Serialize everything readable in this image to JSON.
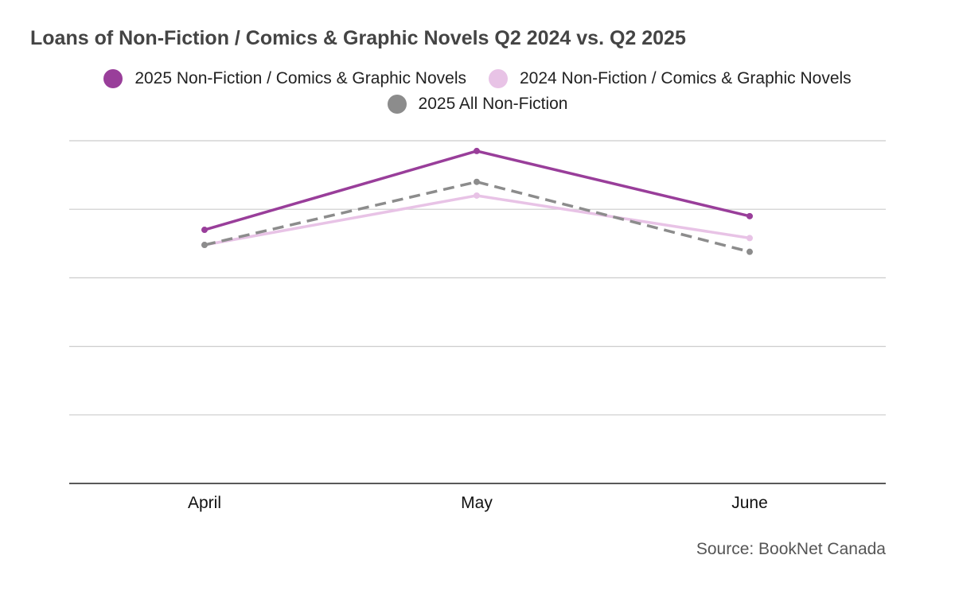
{
  "chart_data": {
    "type": "line",
    "title": "Loans of Non-Fiction / Comics & Graphic Novels Q2 2024 vs. Q2 2025",
    "categories": [
      "April",
      "May",
      "June"
    ],
    "series": [
      {
        "name": "2025 Non-Fiction / Comics & Graphic Novels",
        "color": "#993e9a",
        "dashed": false,
        "values": [
          3.7,
          4.85,
          3.9
        ]
      },
      {
        "name": "2024 Non-Fiction / Comics & Graphic Novels",
        "color": "#e8c3e6",
        "dashed": false,
        "values": [
          3.48,
          4.2,
          3.58
        ]
      },
      {
        "name": "2025 All Non-Fiction",
        "color": "#8c8c8c",
        "dashed": true,
        "values": [
          3.48,
          4.4,
          3.38
        ]
      }
    ],
    "ylim": [
      0,
      5
    ],
    "y_gridlines": [
      1,
      2,
      3,
      4,
      5
    ],
    "y_tick_labels_shown": false,
    "grid": true,
    "legend_position": "top",
    "source": "Source: BookNet Canada"
  }
}
